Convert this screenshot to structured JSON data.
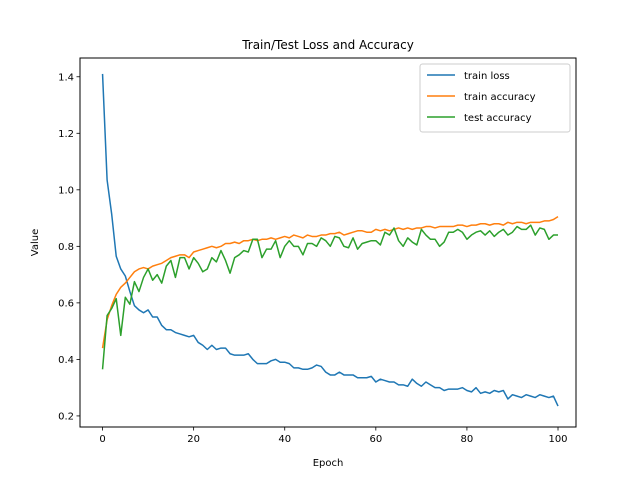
{
  "chart_data": {
    "type": "line",
    "title": "Train/Test Loss and Accuracy",
    "xlabel": "Epoch",
    "ylabel": "Value",
    "xlim": [
      -4.95,
      103.95
    ],
    "ylim": [
      0.1608,
      1.4664
    ],
    "xticks": [
      0,
      20,
      40,
      60,
      80,
      100
    ],
    "xtick_labels": [
      "0",
      "20",
      "40",
      "60",
      "80",
      "100"
    ],
    "yticks": [
      0.2,
      0.4,
      0.6,
      0.8,
      1.0,
      1.2,
      1.4
    ],
    "ytick_labels": [
      "0.2",
      "0.4",
      "0.6",
      "0.8",
      "1.0",
      "1.2",
      "1.4"
    ],
    "grid": false,
    "legend_position": "top-right",
    "series": [
      {
        "name": "train loss",
        "color": "#1f77b4",
        "values": [
          1.41,
          1.035,
          0.915,
          0.765,
          0.72,
          0.695,
          0.64,
          0.59,
          0.575,
          0.565,
          0.575,
          0.55,
          0.55,
          0.52,
          0.505,
          0.505,
          0.495,
          0.49,
          0.485,
          0.48,
          0.485,
          0.46,
          0.45,
          0.435,
          0.45,
          0.435,
          0.44,
          0.44,
          0.42,
          0.415,
          0.415,
          0.415,
          0.42,
          0.4,
          0.385,
          0.385,
          0.385,
          0.395,
          0.4,
          0.39,
          0.39,
          0.385,
          0.37,
          0.37,
          0.365,
          0.365,
          0.37,
          0.38,
          0.375,
          0.355,
          0.345,
          0.345,
          0.355,
          0.345,
          0.345,
          0.345,
          0.335,
          0.335,
          0.335,
          0.34,
          0.32,
          0.33,
          0.325,
          0.32,
          0.32,
          0.31,
          0.31,
          0.305,
          0.33,
          0.315,
          0.305,
          0.32,
          0.31,
          0.3,
          0.3,
          0.29,
          0.295,
          0.295,
          0.295,
          0.3,
          0.29,
          0.285,
          0.3,
          0.28,
          0.285,
          0.28,
          0.29,
          0.285,
          0.29,
          0.26,
          0.275,
          0.27,
          0.265,
          0.275,
          0.27,
          0.265,
          0.275,
          0.27,
          0.265,
          0.27,
          0.235
        ]
      },
      {
        "name": "train accuracy",
        "color": "#ff7f0e",
        "values": [
          0.44,
          0.54,
          0.59,
          0.63,
          0.655,
          0.67,
          0.69,
          0.71,
          0.72,
          0.725,
          0.72,
          0.73,
          0.735,
          0.74,
          0.75,
          0.76,
          0.765,
          0.77,
          0.77,
          0.76,
          0.78,
          0.785,
          0.79,
          0.795,
          0.8,
          0.795,
          0.8,
          0.81,
          0.81,
          0.815,
          0.81,
          0.82,
          0.82,
          0.825,
          0.82,
          0.825,
          0.825,
          0.83,
          0.825,
          0.83,
          0.835,
          0.83,
          0.84,
          0.835,
          0.83,
          0.84,
          0.835,
          0.835,
          0.84,
          0.84,
          0.845,
          0.845,
          0.85,
          0.84,
          0.845,
          0.85,
          0.855,
          0.855,
          0.85,
          0.85,
          0.86,
          0.855,
          0.86,
          0.855,
          0.86,
          0.865,
          0.86,
          0.865,
          0.86,
          0.865,
          0.865,
          0.87,
          0.87,
          0.865,
          0.87,
          0.87,
          0.87,
          0.87,
          0.875,
          0.875,
          0.87,
          0.875,
          0.875,
          0.88,
          0.88,
          0.875,
          0.88,
          0.88,
          0.875,
          0.885,
          0.88,
          0.885,
          0.885,
          0.88,
          0.885,
          0.885,
          0.885,
          0.89,
          0.89,
          0.895,
          0.905
        ]
      },
      {
        "name": "test accuracy",
        "color": "#2ca02c",
        "values": [
          0.365,
          0.555,
          0.58,
          0.615,
          0.485,
          0.62,
          0.595,
          0.675,
          0.64,
          0.69,
          0.72,
          0.68,
          0.7,
          0.67,
          0.73,
          0.75,
          0.69,
          0.76,
          0.76,
          0.72,
          0.76,
          0.74,
          0.71,
          0.72,
          0.76,
          0.745,
          0.785,
          0.75,
          0.705,
          0.76,
          0.77,
          0.785,
          0.78,
          0.825,
          0.825,
          0.76,
          0.79,
          0.79,
          0.82,
          0.76,
          0.8,
          0.82,
          0.8,
          0.8,
          0.77,
          0.81,
          0.81,
          0.8,
          0.83,
          0.82,
          0.8,
          0.835,
          0.83,
          0.8,
          0.795,
          0.83,
          0.79,
          0.81,
          0.815,
          0.82,
          0.82,
          0.805,
          0.85,
          0.84,
          0.865,
          0.82,
          0.8,
          0.83,
          0.815,
          0.805,
          0.86,
          0.84,
          0.825,
          0.825,
          0.8,
          0.815,
          0.85,
          0.85,
          0.86,
          0.85,
          0.825,
          0.84,
          0.85,
          0.855,
          0.84,
          0.855,
          0.835,
          0.85,
          0.86,
          0.84,
          0.85,
          0.87,
          0.86,
          0.86,
          0.875,
          0.84,
          0.865,
          0.86,
          0.825,
          0.84,
          0.84
        ]
      }
    ]
  }
}
